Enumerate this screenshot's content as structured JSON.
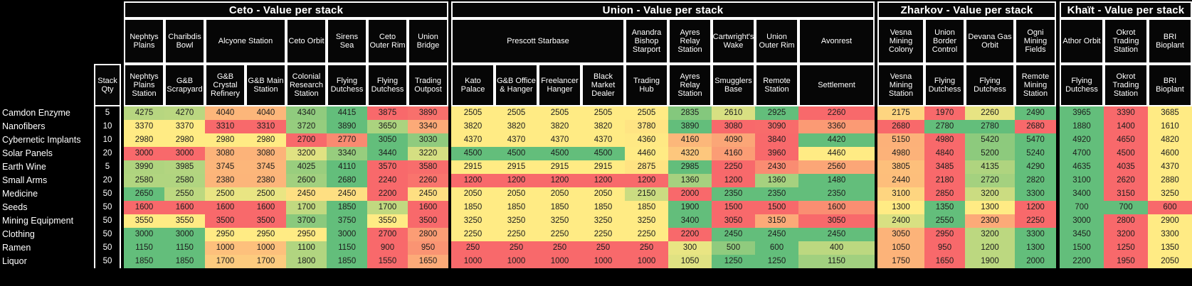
{
  "table": {
    "stack_qty_header": "Stack Qty",
    "heatmap_colors": {
      "min": "#F8696B",
      "mid": "#FFEB84",
      "max": "#63BE7B"
    },
    "groups": [
      {
        "id": "ceto",
        "title": "Ceto - Value per stack",
        "locations": [
          {
            "name": "Nephtys Plains",
            "span": 1
          },
          {
            "name": "Charibdis Bowl",
            "span": 1
          },
          {
            "name": "Alcyone Station",
            "span": 2
          },
          {
            "name": "Ceto Orbit",
            "span": 1
          },
          {
            "name": "Sirens Sea",
            "span": 1
          },
          {
            "name": "Ceto Outer Rim",
            "span": 1
          },
          {
            "name": "Union Bridge",
            "span": 1
          }
        ],
        "stations": [
          "Nephtys Plains Station",
          "G&B Scrapyard",
          "G&B Crystal Refinery",
          "G&B Main Station",
          "Colonial Research Station",
          "Flying Dutchess",
          "Flying Dutchess",
          "Trading Outpost"
        ]
      },
      {
        "id": "union",
        "title": "Union - Value per stack",
        "locations": [
          {
            "name": "Prescott Starbase",
            "span": 4
          },
          {
            "name": "Anandra Bishop Starport",
            "span": 1
          },
          {
            "name": "Ayres Relay Station",
            "span": 1
          },
          {
            "name": "Cartwright's Wake",
            "span": 1
          },
          {
            "name": "Union Outer Rim",
            "span": 1
          },
          {
            "name": "Avonrest",
            "span": 1
          }
        ],
        "stations": [
          "Kato Palace",
          "G&B Office & Hanger",
          "Freelancer Hanger",
          "Black Market Dealer",
          "Trading Hub",
          "Ayres Relay Station",
          "Smugglers Base",
          "Remote Station",
          "Settlement"
        ]
      },
      {
        "id": "zharkov",
        "title": "Zharkov - Value per stack",
        "locations": [
          {
            "name": "Vesna Mining Colony",
            "span": 1
          },
          {
            "name": "Union Border Control",
            "span": 1
          },
          {
            "name": "Devana Gas Orbit",
            "span": 1
          },
          {
            "name": "Ogni Mining Fields",
            "span": 1
          }
        ],
        "stations": [
          "Vesna Mining Station",
          "Flying Dutchess",
          "Flying Dutchess",
          "Remote Mining Station"
        ]
      },
      {
        "id": "khait",
        "title": "Khaït - Value per stack",
        "locations": [
          {
            "name": "Athor Orbit",
            "span": 1
          },
          {
            "name": "Okrot Trading Station",
            "span": 1
          },
          {
            "name": "BRI Bioplant",
            "span": 1
          }
        ],
        "stations": [
          "Flying Dutchess",
          "Okrot Trading Station",
          "BRI Bioplant"
        ]
      }
    ],
    "items": [
      {
        "name": "Camdon Enzyme",
        "stack_qty": 5,
        "values": [
          [
            4275,
            4270,
            4040,
            4040,
            4340,
            4415,
            3875,
            3890
          ],
          [
            2505,
            2505,
            2505,
            2505,
            2505,
            2835,
            2610,
            2925,
            2260
          ],
          [
            2175,
            1970,
            2260,
            2490
          ],
          [
            3965,
            3390,
            3685
          ]
        ]
      },
      {
        "name": "Nanofibers",
        "stack_qty": 10,
        "values": [
          [
            3370,
            3370,
            3310,
            3310,
            3720,
            3890,
            3650,
            3340
          ],
          [
            3820,
            3820,
            3820,
            3820,
            3780,
            3890,
            3080,
            3090,
            3360
          ],
          [
            2680,
            2780,
            2780,
            2680
          ],
          [
            1880,
            1400,
            1610
          ]
        ]
      },
      {
        "name": "Cybernetic Implants",
        "stack_qty": 10,
        "values": [
          [
            2980,
            2980,
            2980,
            2980,
            2700,
            2770,
            3050,
            3030
          ],
          [
            4370,
            4370,
            4370,
            4370,
            4360,
            4160,
            4090,
            3840,
            4420
          ],
          [
            5150,
            4980,
            5420,
            5470
          ],
          [
            4920,
            4650,
            4820
          ]
        ]
      },
      {
        "name": "Solar Panels",
        "stack_qty": 20,
        "values": [
          [
            3000,
            3000,
            3080,
            3080,
            3200,
            3340,
            3440,
            3220
          ],
          [
            4500,
            4500,
            4500,
            4500,
            4460,
            4320,
            4160,
            3960,
            4460
          ],
          [
            4980,
            4840,
            5200,
            5240
          ],
          [
            4700,
            4500,
            4600
          ]
        ]
      },
      {
        "name": "Earth Wine",
        "stack_qty": 5,
        "values": [
          [
            3990,
            3985,
            3745,
            3745,
            4025,
            4110,
            3570,
            3580
          ],
          [
            2915,
            2915,
            2915,
            2915,
            2875,
            2985,
            2250,
            2430,
            2560
          ],
          [
            3805,
            3485,
            4135,
            4290
          ],
          [
            4635,
            4035,
            4370
          ]
        ]
      },
      {
        "name": "Small Arms",
        "stack_qty": 20,
        "values": [
          [
            2580,
            2580,
            2380,
            2380,
            2600,
            2680,
            2240,
            2260
          ],
          [
            1200,
            1200,
            1200,
            1200,
            1200,
            1360,
            1200,
            1360,
            1480
          ],
          [
            2440,
            2180,
            2720,
            2820
          ],
          [
            3100,
            2620,
            2880
          ]
        ]
      },
      {
        "name": "Medicine",
        "stack_qty": 50,
        "values": [
          [
            2650,
            2550,
            2500,
            2500,
            2450,
            2450,
            2200,
            2450
          ],
          [
            2050,
            2050,
            2050,
            2050,
            2150,
            2000,
            2350,
            2350,
            2350
          ],
          [
            3100,
            2850,
            3200,
            3300
          ],
          [
            3400,
            3150,
            3250
          ]
        ]
      },
      {
        "name": "Seeds",
        "stack_qty": 50,
        "values": [
          [
            1600,
            1600,
            1600,
            1600,
            1700,
            1850,
            1700,
            1600
          ],
          [
            1850,
            1850,
            1850,
            1850,
            1850,
            1900,
            1500,
            1500,
            1600
          ],
          [
            1300,
            1350,
            1300,
            1200
          ],
          [
            700,
            700,
            600
          ]
        ]
      },
      {
        "name": "Mining Equipment",
        "stack_qty": 50,
        "values": [
          [
            3550,
            3550,
            3500,
            3500,
            3700,
            3750,
            3550,
            3500
          ],
          [
            3250,
            3250,
            3250,
            3250,
            3250,
            3400,
            3050,
            3150,
            3050
          ],
          [
            2400,
            2550,
            2300,
            2250
          ],
          [
            3000,
            2800,
            2900
          ]
        ]
      },
      {
        "name": "Clothing",
        "stack_qty": 50,
        "values": [
          [
            3000,
            3000,
            2950,
            2950,
            2950,
            3000,
            2700,
            2800
          ],
          [
            2250,
            2250,
            2250,
            2250,
            2250,
            2200,
            2450,
            2450,
            2450
          ],
          [
            3050,
            2950,
            3200,
            3300
          ],
          [
            3450,
            3200,
            3300
          ]
        ]
      },
      {
        "name": "Ramen",
        "stack_qty": 50,
        "values": [
          [
            1150,
            1150,
            1000,
            1000,
            1100,
            1150,
            900,
            950
          ],
          [
            250,
            250,
            250,
            250,
            250,
            300,
            500,
            600,
            400
          ],
          [
            1050,
            950,
            1200,
            1300
          ],
          [
            1500,
            1250,
            1350
          ]
        ]
      },
      {
        "name": "Liquor",
        "stack_qty": 50,
        "values": [
          [
            1850,
            1850,
            1700,
            1700,
            1800,
            1850,
            1550,
            1650
          ],
          [
            1000,
            1000,
            1000,
            1000,
            1000,
            1050,
            1250,
            1250,
            1150
          ],
          [
            1750,
            1650,
            1900,
            2000
          ],
          [
            2200,
            1950,
            2050
          ]
        ]
      }
    ]
  }
}
